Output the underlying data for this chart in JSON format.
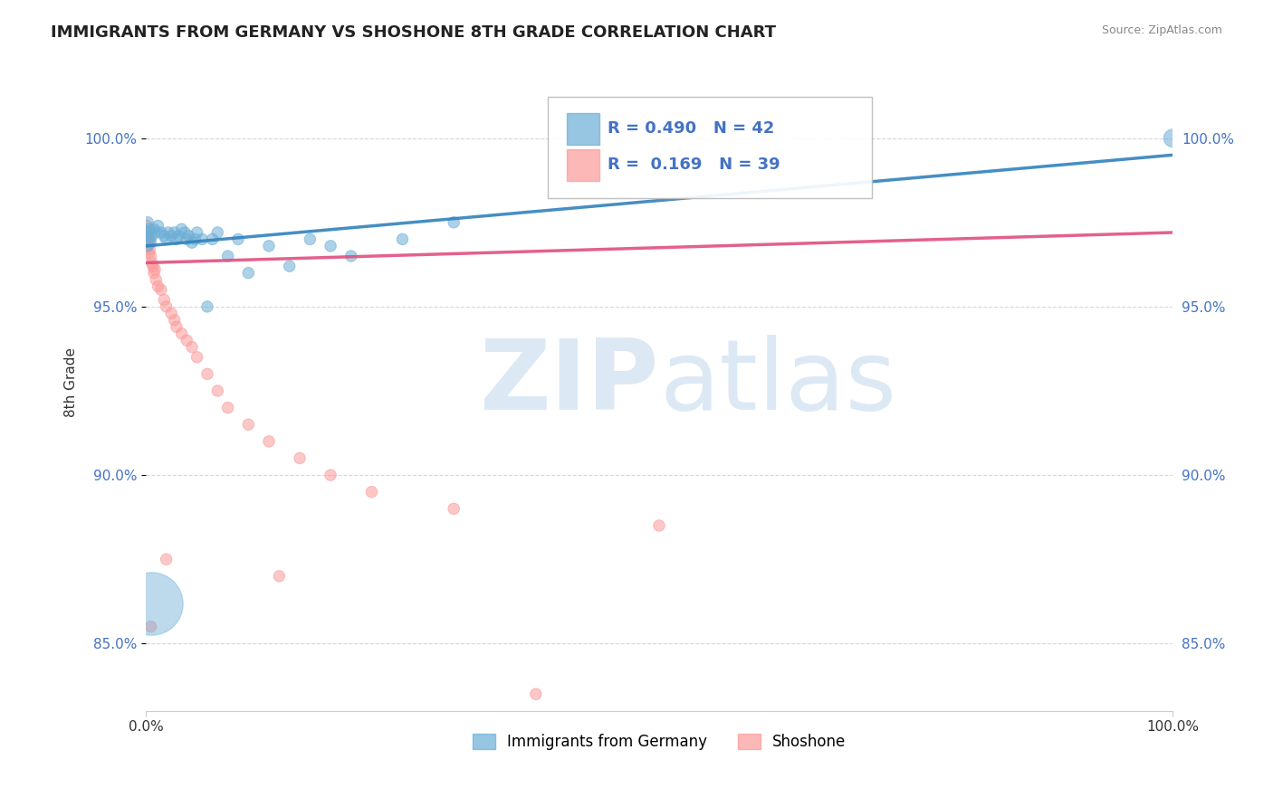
{
  "title": "IMMIGRANTS FROM GERMANY VS SHOSHONE 8TH GRADE CORRELATION CHART",
  "source_text": "Source: ZipAtlas.com",
  "ylabel": "8th Grade",
  "xlim": [
    0.0,
    1.0
  ],
  "ylim": [
    0.83,
    1.025
  ],
  "x_tick_labels": [
    "0.0%",
    "100.0%"
  ],
  "y_tick_labels": [
    "85.0%",
    "90.0%",
    "95.0%",
    "100.0%"
  ],
  "y_tick_values": [
    0.85,
    0.9,
    0.95,
    1.0
  ],
  "blue_R": 0.49,
  "blue_N": 42,
  "pink_R": 0.169,
  "pink_N": 39,
  "blue_color": "#6baed6",
  "pink_color": "#fb9a99",
  "blue_line_color": "#3182bd",
  "pink_line_color": "#e05080",
  "watermark_zip": "ZIP",
  "watermark_atlas": "atlas",
  "watermark_color": "#c6dbef",
  "legend_label_blue": "Immigrants from Germany",
  "legend_label_pink": "Shoshone",
  "blue_scatter_x": [
    0.002,
    0.003,
    0.001,
    0.002,
    0.004,
    0.003,
    0.005,
    0.006,
    0.008,
    0.01,
    0.012,
    0.015,
    0.018,
    0.02,
    0.022,
    0.025,
    0.028,
    0.03,
    0.032,
    0.035,
    0.038,
    0.04,
    0.042,
    0.045,
    0.048,
    0.05,
    0.055,
    0.06,
    0.065,
    0.07,
    0.08,
    0.09,
    0.1,
    0.12,
    0.14,
    0.16,
    0.18,
    0.2,
    0.25,
    0.3,
    1.0
  ],
  "blue_scatter_y": [
    0.975,
    0.972,
    0.971,
    0.968,
    0.973,
    0.97,
    0.969,
    0.971,
    0.973,
    0.972,
    0.974,
    0.972,
    0.971,
    0.97,
    0.972,
    0.971,
    0.972,
    0.97,
    0.971,
    0.973,
    0.972,
    0.97,
    0.971,
    0.969,
    0.97,
    0.972,
    0.97,
    0.95,
    0.97,
    0.972,
    0.965,
    0.97,
    0.96,
    0.968,
    0.962,
    0.97,
    0.968,
    0.965,
    0.97,
    0.975,
    1.0
  ],
  "blue_scatter_sizes": [
    80,
    80,
    80,
    80,
    80,
    80,
    80,
    80,
    80,
    80,
    80,
    80,
    80,
    80,
    80,
    80,
    80,
    80,
    80,
    80,
    80,
    80,
    80,
    80,
    80,
    80,
    80,
    80,
    80,
    80,
    80,
    80,
    80,
    80,
    80,
    80,
    80,
    80,
    80,
    80,
    200
  ],
  "blue_special_x": [
    0.005
  ],
  "blue_special_y": [
    0.862
  ],
  "blue_special_size": [
    2500
  ],
  "pink_scatter_x": [
    0.001,
    0.001,
    0.002,
    0.002,
    0.003,
    0.003,
    0.004,
    0.004,
    0.005,
    0.006,
    0.007,
    0.008,
    0.009,
    0.01,
    0.012,
    0.015,
    0.018,
    0.02,
    0.025,
    0.028,
    0.03,
    0.035,
    0.04,
    0.045,
    0.05,
    0.06,
    0.07,
    0.08,
    0.1,
    0.12,
    0.15,
    0.18,
    0.22,
    0.3,
    0.5,
    0.02,
    0.13,
    0.005,
    0.38
  ],
  "pink_scatter_y": [
    0.974,
    0.971,
    0.972,
    0.968,
    0.969,
    0.966,
    0.97,
    0.967,
    0.965,
    0.963,
    0.962,
    0.96,
    0.961,
    0.958,
    0.956,
    0.955,
    0.952,
    0.95,
    0.948,
    0.946,
    0.944,
    0.942,
    0.94,
    0.938,
    0.935,
    0.93,
    0.925,
    0.92,
    0.915,
    0.91,
    0.905,
    0.9,
    0.895,
    0.89,
    0.885,
    0.875,
    0.87,
    0.855,
    0.835
  ],
  "pink_scatter_sizes": [
    80,
    80,
    80,
    80,
    80,
    80,
    80,
    80,
    80,
    80,
    80,
    80,
    80,
    80,
    80,
    80,
    80,
    80,
    80,
    80,
    80,
    80,
    80,
    80,
    80,
    80,
    80,
    80,
    80,
    80,
    80,
    80,
    80,
    80,
    80,
    80,
    80,
    80,
    80
  ],
  "blue_line_x": [
    0.0,
    1.0
  ],
  "blue_line_y": [
    0.968,
    0.995
  ],
  "pink_line_x": [
    0.0,
    1.0
  ],
  "pink_line_y": [
    0.963,
    0.972
  ],
  "grid_color": "#cccccc",
  "background_color": "#ffffff"
}
